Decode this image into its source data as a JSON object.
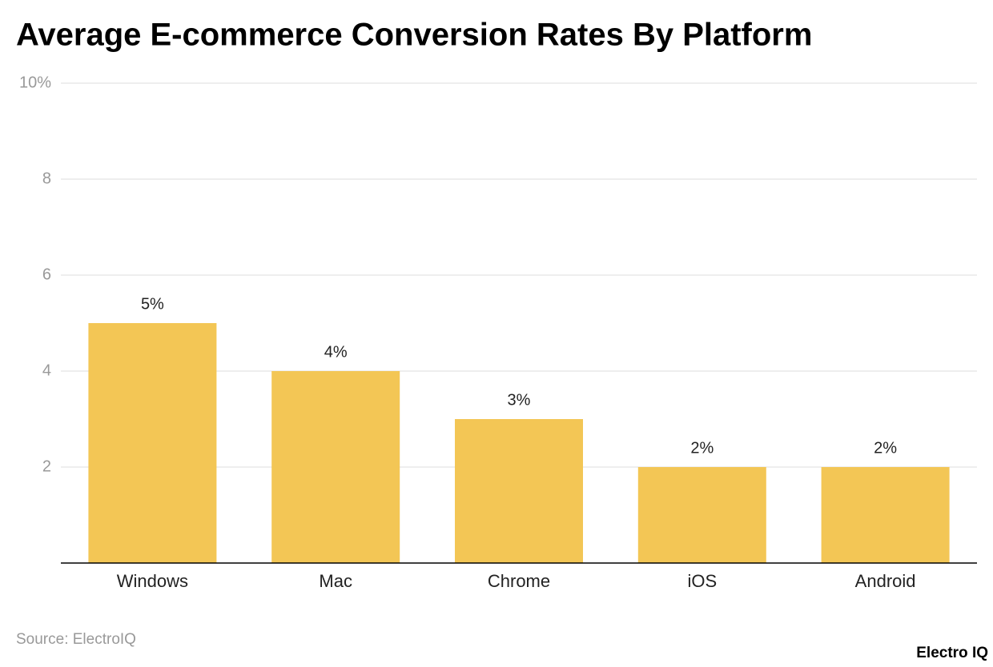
{
  "chart_data": {
    "type": "bar",
    "title": "Average E-commerce Conversion Rates By Platform",
    "categories": [
      "Windows",
      "Mac",
      "Chrome",
      "iOS",
      "Android"
    ],
    "values": [
      5,
      4,
      3,
      2,
      2
    ],
    "value_labels": [
      "5%",
      "4%",
      "3%",
      "2%",
      "2%"
    ],
    "color": "#f3c655",
    "ylim": [
      0,
      10
    ],
    "yticks": [
      2,
      4,
      6,
      8,
      {
        "value": 10,
        "label": "10%"
      }
    ],
    "grid": true,
    "source": "Source: ElectroIQ",
    "brand": "Electro IQ"
  }
}
